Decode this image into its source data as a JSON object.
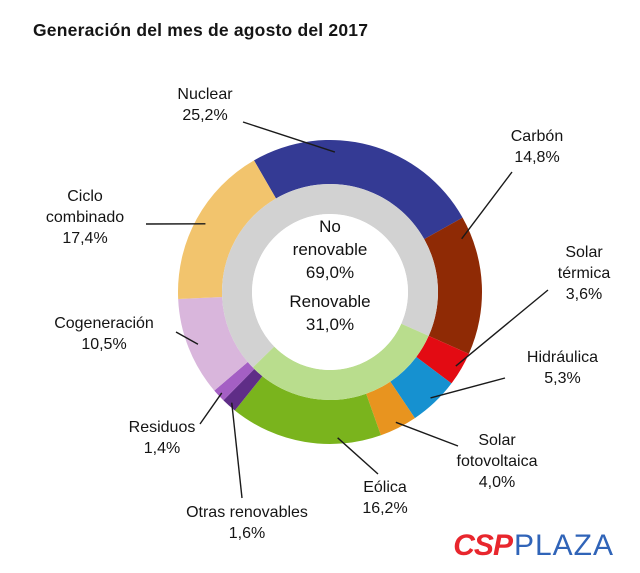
{
  "title": "Generación del mes de agosto del 2017",
  "chart_data": {
    "type": "pie",
    "subtype": "donut-two-ring",
    "title": "Generación del mes de agosto del 2017",
    "unit": "%",
    "slices": [
      {
        "id": "nuclear",
        "label": "Nuclear",
        "value": 25.2,
        "value_text": "25,2%",
        "color": "#343a94"
      },
      {
        "id": "carbon",
        "label": "Carbón",
        "value": 14.8,
        "value_text": "14,8%",
        "color": "#8f2a05"
      },
      {
        "id": "solar-termica",
        "label": "Solar térmica",
        "value": 3.6,
        "value_text": "3,6%",
        "color": "#e30b13"
      },
      {
        "id": "hidraulica",
        "label": "Hidráulica",
        "value": 5.3,
        "value_text": "5,3%",
        "color": "#1691d0"
      },
      {
        "id": "solar-fotovoltaica",
        "label": "Solar fotovoltaica",
        "value": 4.0,
        "value_text": "4,0%",
        "color": "#e8941f"
      },
      {
        "id": "eolica",
        "label": "Eólica",
        "value": 16.2,
        "value_text": "16,2%",
        "color": "#7ab41d"
      },
      {
        "id": "otras-renovables",
        "label": "Otras renovables",
        "value": 1.6,
        "value_text": "1,6%",
        "color": "#5f2d87"
      },
      {
        "id": "residuos",
        "label": "Residuos",
        "value": 1.4,
        "value_text": "1,4%",
        "color": "#a45fc4"
      },
      {
        "id": "cogeneracion",
        "label": "Cogeneración",
        "value": 10.5,
        "value_text": "10,5%",
        "color": "#d9b6dc"
      },
      {
        "id": "ciclo-combinado",
        "label": "Ciclo combinado",
        "value": 17.4,
        "value_text": "17,4%",
        "color": "#f2c46d"
      }
    ],
    "inner_ring": {
      "no_renovable": {
        "label": "No renovable",
        "value": 69.0,
        "value_text": "69,0%",
        "color": "#d2d2d2"
      },
      "renovable": {
        "label": "Renovable",
        "value": 31.0,
        "value_text": "31,0%",
        "color": "#b9dd8d"
      }
    }
  },
  "logo": {
    "csp": "CSP",
    "plaza": "PLAZA",
    "csp_color": "#e8262d",
    "plaza_color": "#3064b8"
  }
}
